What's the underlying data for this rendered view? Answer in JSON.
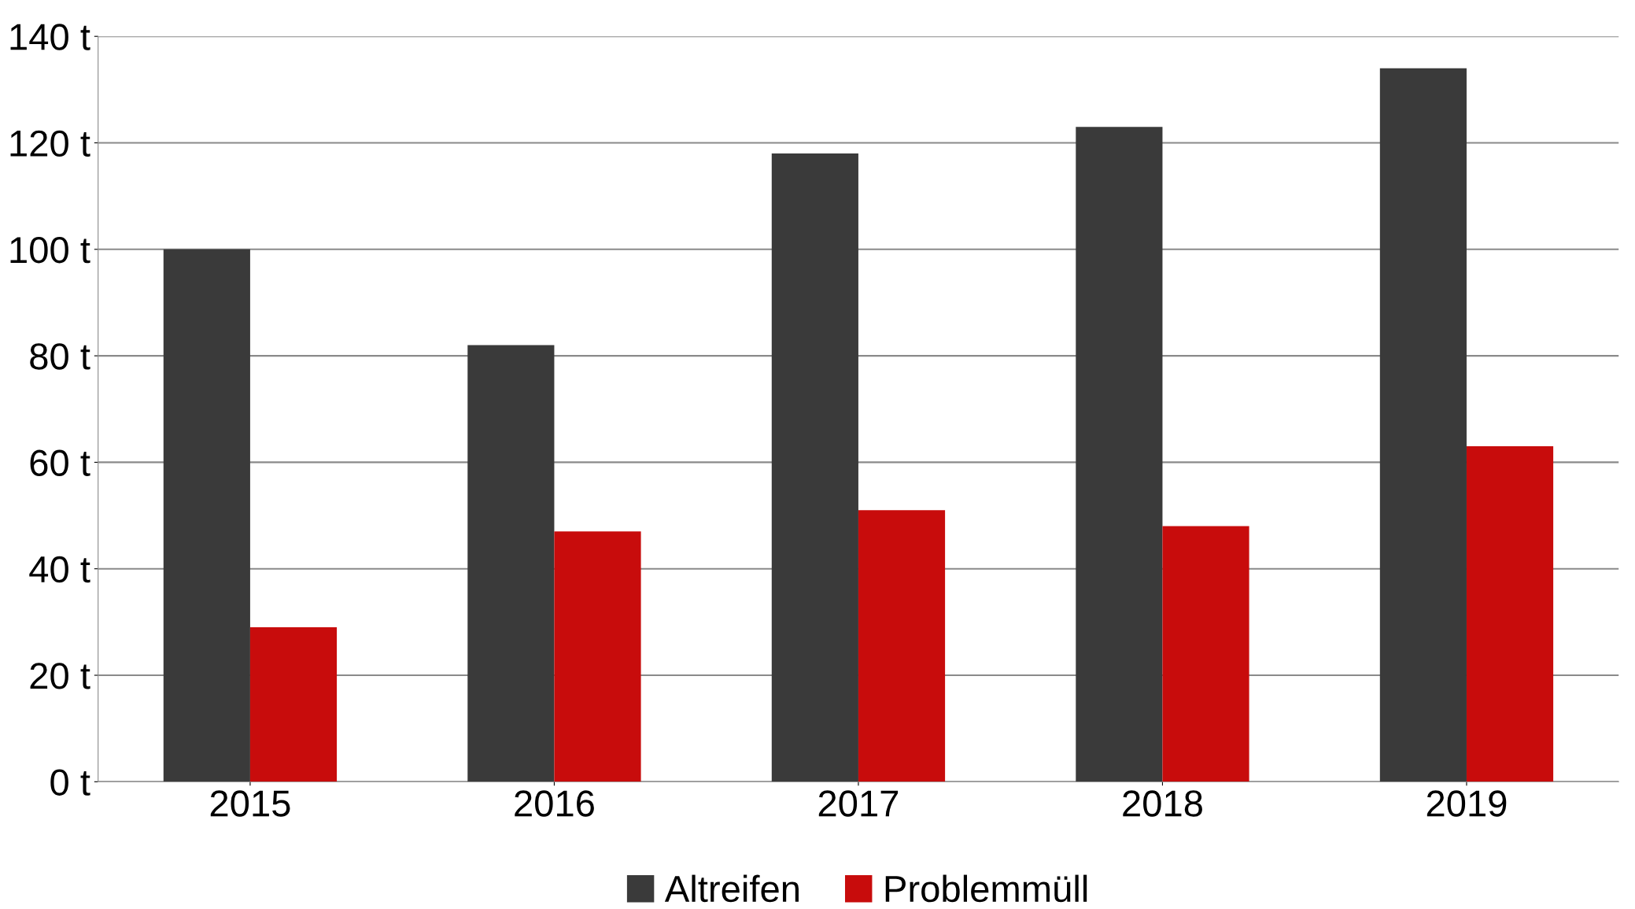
{
  "chart_data": {
    "type": "bar",
    "categories": [
      "2015",
      "2016",
      "2017",
      "2018",
      "2019"
    ],
    "series": [
      {
        "name": "Altreifen",
        "color": "#3a3a3a",
        "values": [
          100,
          82,
          118,
          123,
          134
        ]
      },
      {
        "name": "Problemmüll",
        "color": "#c80c0c",
        "values": [
          29,
          47,
          51,
          48,
          63
        ]
      }
    ],
    "ylim": [
      0,
      140
    ],
    "yticks": [
      {
        "value": 0,
        "label": "0 t"
      },
      {
        "value": 20,
        "label": "20 t"
      },
      {
        "value": 40,
        "label": "40 t"
      },
      {
        "value": 60,
        "label": "60 t"
      },
      {
        "value": 80,
        "label": "80 t"
      },
      {
        "value": 100,
        "label": "100 t"
      },
      {
        "value": 120,
        "label": "120 t"
      },
      {
        "value": 140,
        "label": "140 t"
      }
    ],
    "grid": "y",
    "legend": "bottom"
  }
}
